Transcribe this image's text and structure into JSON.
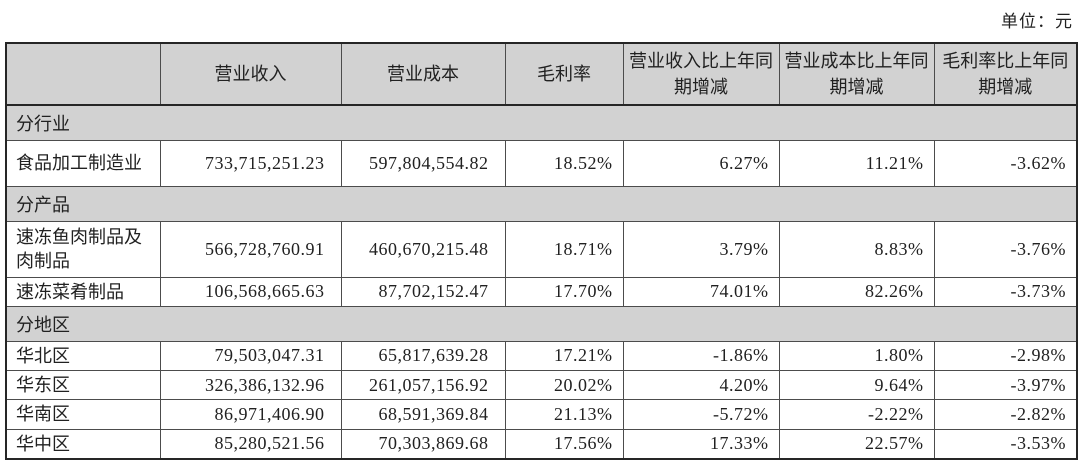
{
  "unit_label": "单位：元",
  "colors": {
    "header_bg": "#d2d2d2",
    "section_bg": "#d2d2d2",
    "border": "#4c4c4c",
    "outer_border": "#262626",
    "text": "#212121"
  },
  "table": {
    "columns": [
      "",
      "营业收入",
      "营业成本",
      "毛利率",
      "营业收入比上年同期增减",
      "营业成本比上年同期增减",
      "毛利率比上年同期增减"
    ],
    "rows": [
      {
        "type": "section",
        "label": "分行业"
      },
      {
        "type": "data",
        "label": "食品加工制造业",
        "values": [
          "733,715,251.23",
          "597,804,554.82",
          "18.52%",
          "6.27%",
          "11.21%",
          "-3.62%"
        ]
      },
      {
        "type": "section",
        "label": "分产品"
      },
      {
        "type": "data",
        "label": "速冻鱼肉制品及肉制品",
        "values": [
          "566,728,760.91",
          "460,670,215.48",
          "18.71%",
          "3.79%",
          "8.83%",
          "-3.76%"
        ]
      },
      {
        "type": "data",
        "label": "速冻菜肴制品",
        "values": [
          "106,568,665.63",
          "87,702,152.47",
          "17.70%",
          "74.01%",
          "82.26%",
          "-3.73%"
        ]
      },
      {
        "type": "section",
        "label": "分地区"
      },
      {
        "type": "data",
        "label": "华北区",
        "values": [
          "79,503,047.31",
          "65,817,639.28",
          "17.21%",
          "-1.86%",
          "1.80%",
          "-2.98%"
        ]
      },
      {
        "type": "data",
        "label": "华东区",
        "values": [
          "326,386,132.96",
          "261,057,156.92",
          "20.02%",
          "4.20%",
          "9.64%",
          "-3.97%"
        ]
      },
      {
        "type": "data",
        "label": "华南区",
        "values": [
          "86,971,406.90",
          "68,591,369.84",
          "21.13%",
          "-5.72%",
          "-2.22%",
          "-2.82%"
        ]
      },
      {
        "type": "data",
        "label": "华中区",
        "values": [
          "85,280,521.56",
          "70,303,869.68",
          "17.56%",
          "17.33%",
          "22.57%",
          "-3.53%"
        ]
      }
    ]
  }
}
